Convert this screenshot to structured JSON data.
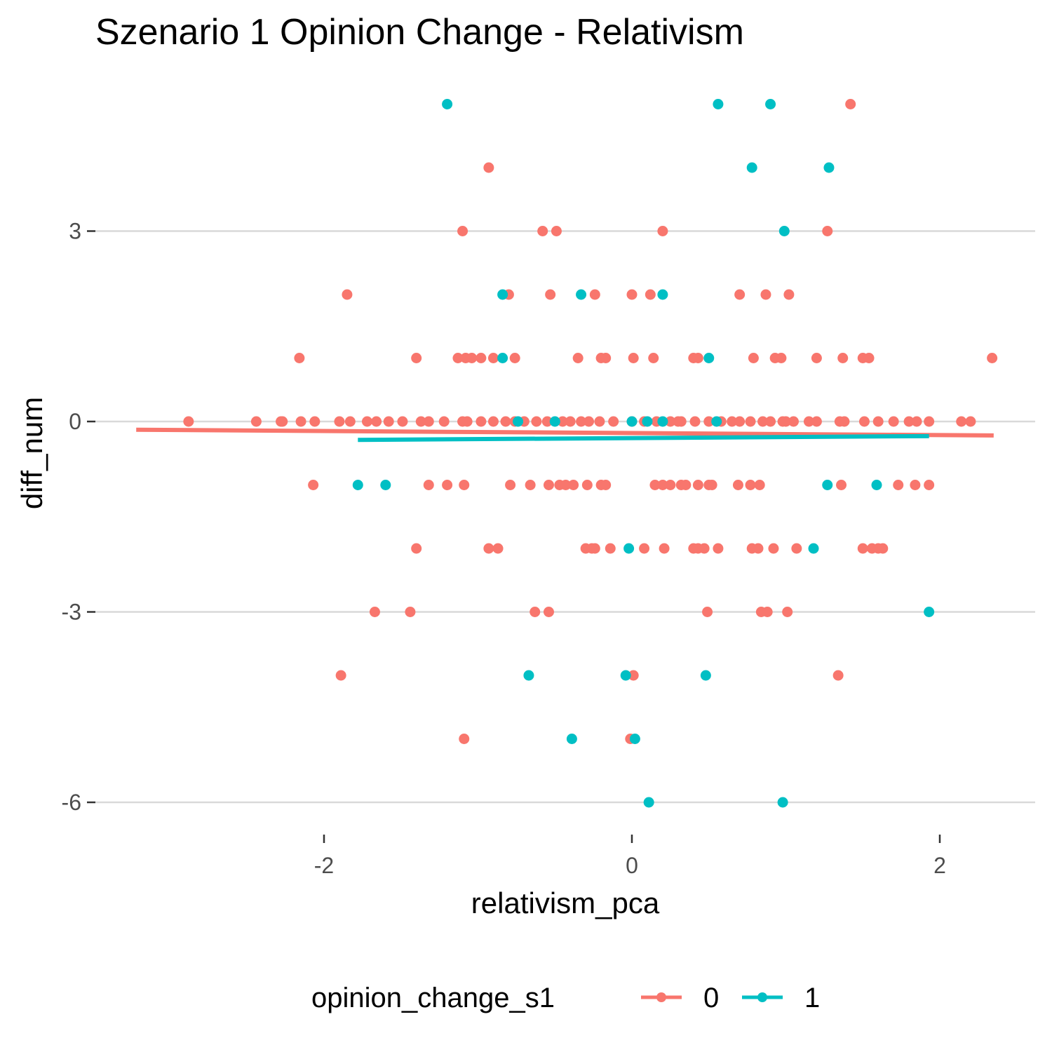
{
  "chart_data": {
    "type": "scatter",
    "title": "Szenario 1 Opinion Change - Relativism",
    "xlabel": "relativism_pca",
    "ylabel": "diff_num",
    "xlim": [
      -2.9,
      2.35
    ],
    "ylim": [
      -6.5,
      5.2
    ],
    "x_ticks": [
      -2,
      0,
      2
    ],
    "x_tick_labels": [
      "-2",
      "0",
      "2"
    ],
    "y_ticks": [
      -6,
      -3,
      0,
      3
    ],
    "y_tick_labels": [
      "-6",
      "-3",
      "0",
      "3"
    ],
    "grid": "horizontal major",
    "legend": {
      "title": "opinion_change_s1",
      "position": "bottom",
      "entries": [
        "0",
        "1"
      ]
    },
    "colors": {
      "0": "#F8766D",
      "1": "#00BFC4",
      "grid": "#d9d9d9",
      "tick_text": "#4d4d4d"
    },
    "series": [
      {
        "name": "0",
        "color": "#F8766D",
        "points": [
          [
            1.42,
            5
          ],
          [
            -0.93,
            4
          ],
          [
            -1.1,
            3
          ],
          [
            -0.58,
            3
          ],
          [
            -0.49,
            3
          ],
          [
            0.2,
            3
          ],
          [
            1.27,
            3
          ],
          [
            -1.85,
            2
          ],
          [
            -0.8,
            2
          ],
          [
            -0.53,
            2
          ],
          [
            -0.24,
            2
          ],
          [
            0,
            2
          ],
          [
            0.12,
            2
          ],
          [
            0.7,
            2
          ],
          [
            0.87,
            2
          ],
          [
            1.02,
            2
          ],
          [
            -2.16,
            1
          ],
          [
            -1.4,
            1
          ],
          [
            -1.13,
            1
          ],
          [
            -1.08,
            1
          ],
          [
            -1.04,
            1
          ],
          [
            -0.98,
            1
          ],
          [
            -0.9,
            1
          ],
          [
            -0.76,
            1
          ],
          [
            -0.35,
            1
          ],
          [
            -0.2,
            1
          ],
          [
            -0.17,
            1
          ],
          [
            0.01,
            1
          ],
          [
            0.14,
            1
          ],
          [
            0.4,
            1
          ],
          [
            0.43,
            1
          ],
          [
            0.79,
            1
          ],
          [
            0.93,
            1
          ],
          [
            0.97,
            1
          ],
          [
            1.2,
            1
          ],
          [
            1.37,
            1
          ],
          [
            1.5,
            1
          ],
          [
            1.54,
            1
          ],
          [
            2.34,
            1
          ],
          [
            -2.88,
            0
          ],
          [
            -2.44,
            0
          ],
          [
            -2.28,
            0
          ],
          [
            -2.27,
            0
          ],
          [
            -2.15,
            0
          ],
          [
            -2.06,
            0
          ],
          [
            -1.9,
            0
          ],
          [
            -1.83,
            0
          ],
          [
            -1.72,
            0
          ],
          [
            -1.66,
            0
          ],
          [
            -1.58,
            0
          ],
          [
            -1.49,
            0
          ],
          [
            -1.37,
            0
          ],
          [
            -1.32,
            0
          ],
          [
            -1.22,
            0
          ],
          [
            -1.07,
            0
          ],
          [
            -0.98,
            0
          ],
          [
            -0.9,
            0
          ],
          [
            -0.82,
            0
          ],
          [
            -0.76,
            0
          ],
          [
            -0.7,
            0
          ],
          [
            -0.62,
            0
          ],
          [
            -0.55,
            0
          ],
          [
            -0.45,
            0
          ],
          [
            -0.33,
            0
          ],
          [
            -0.28,
            0
          ],
          [
            -0.21,
            0
          ],
          [
            -0.12,
            0
          ],
          [
            0,
            0
          ],
          [
            0.08,
            0
          ],
          [
            0.16,
            0
          ],
          [
            0.25,
            0
          ],
          [
            0.32,
            0
          ],
          [
            0.41,
            0
          ],
          [
            0.5,
            0
          ],
          [
            0.58,
            0
          ],
          [
            0.65,
            0
          ],
          [
            0.7,
            0
          ],
          [
            0.77,
            0
          ],
          [
            0.85,
            0
          ],
          [
            0.9,
            0
          ],
          [
            0.98,
            0
          ],
          [
            1.05,
            0
          ],
          [
            1.15,
            0
          ],
          [
            1.2,
            0
          ],
          [
            1.35,
            0
          ],
          [
            1.38,
            0
          ],
          [
            1.51,
            0
          ],
          [
            1.7,
            0
          ],
          [
            1.8,
            0
          ],
          [
            1.85,
            0
          ],
          [
            1.93,
            0
          ],
          [
            2.14,
            0
          ],
          [
            2.2,
            0
          ],
          [
            -1.1,
            0
          ],
          [
            -0.4,
            0
          ],
          [
            0.3,
            0
          ],
          [
            1.0,
            0
          ],
          [
            1.6,
            0
          ],
          [
            -2.07,
            -1
          ],
          [
            -1.32,
            -1
          ],
          [
            -1.2,
            -1
          ],
          [
            -1.09,
            -1
          ],
          [
            -0.79,
            -1
          ],
          [
            -0.66,
            -1
          ],
          [
            -0.54,
            -1
          ],
          [
            -0.47,
            -1
          ],
          [
            -0.43,
            -1
          ],
          [
            -0.38,
            -1
          ],
          [
            -0.29,
            -1
          ],
          [
            -0.2,
            -1
          ],
          [
            -0.17,
            -1
          ],
          [
            0.15,
            -1
          ],
          [
            0.2,
            -1
          ],
          [
            0.25,
            -1
          ],
          [
            0.32,
            -1
          ],
          [
            0.35,
            -1
          ],
          [
            0.43,
            -1
          ],
          [
            0.5,
            -1
          ],
          [
            0.52,
            -1
          ],
          [
            0.69,
            -1
          ],
          [
            0.77,
            -1
          ],
          [
            0.83,
            -1
          ],
          [
            1.36,
            -1
          ],
          [
            1.73,
            -1
          ],
          [
            1.84,
            -1
          ],
          [
            1.93,
            -1
          ],
          [
            -1.4,
            -2
          ],
          [
            -0.93,
            -2
          ],
          [
            -0.87,
            -2
          ],
          [
            -0.3,
            -2
          ],
          [
            -0.26,
            -2
          ],
          [
            -0.24,
            -2
          ],
          [
            -0.14,
            -2
          ],
          [
            0.08,
            -2
          ],
          [
            0.21,
            -2
          ],
          [
            0.4,
            -2
          ],
          [
            0.43,
            -2
          ],
          [
            0.47,
            -2
          ],
          [
            0.56,
            -2
          ],
          [
            0.78,
            -2
          ],
          [
            0.82,
            -2
          ],
          [
            0.92,
            -2
          ],
          [
            1.07,
            -2
          ],
          [
            1.5,
            -2
          ],
          [
            1.56,
            -2
          ],
          [
            1.6,
            -2
          ],
          [
            1.63,
            -2
          ],
          [
            -1.67,
            -3
          ],
          [
            -1.44,
            -3
          ],
          [
            -0.63,
            -3
          ],
          [
            -0.54,
            -3
          ],
          [
            0.49,
            -3
          ],
          [
            0.84,
            -3
          ],
          [
            0.88,
            -3
          ],
          [
            1.01,
            -3
          ],
          [
            -1.89,
            -4
          ],
          [
            0.01,
            -4
          ],
          [
            1.34,
            -4
          ],
          [
            -1.09,
            -5
          ],
          [
            -0.01,
            -5
          ]
        ],
        "fit": [
          [
            -3.22,
            -0.13
          ],
          [
            2.35,
            -0.22
          ]
        ]
      },
      {
        "name": "1",
        "color": "#00BFC4",
        "points": [
          [
            -1.2,
            5
          ],
          [
            0.56,
            5
          ],
          [
            0.9,
            5
          ],
          [
            0.78,
            4
          ],
          [
            1.28,
            4
          ],
          [
            0.99,
            3
          ],
          [
            -0.84,
            2
          ],
          [
            -0.33,
            2
          ],
          [
            0.2,
            2
          ],
          [
            -0.84,
            1
          ],
          [
            0.5,
            1
          ],
          [
            -0.74,
            0
          ],
          [
            -0.5,
            0
          ],
          [
            0,
            0
          ],
          [
            0.1,
            0
          ],
          [
            0.2,
            0
          ],
          [
            0.55,
            0
          ],
          [
            -1.78,
            -1
          ],
          [
            -1.6,
            -1
          ],
          [
            1.27,
            -1
          ],
          [
            1.59,
            -1
          ],
          [
            -0.02,
            -2
          ],
          [
            1.18,
            -2
          ],
          [
            1.93,
            -3
          ],
          [
            -0.67,
            -4
          ],
          [
            -0.04,
            -4
          ],
          [
            0.48,
            -4
          ],
          [
            -0.39,
            -5
          ],
          [
            0.02,
            -5
          ],
          [
            0.11,
            -6
          ],
          [
            0.98,
            -6
          ]
        ],
        "fit": [
          [
            -1.78,
            -0.29
          ],
          [
            1.93,
            -0.23
          ]
        ]
      }
    ]
  }
}
